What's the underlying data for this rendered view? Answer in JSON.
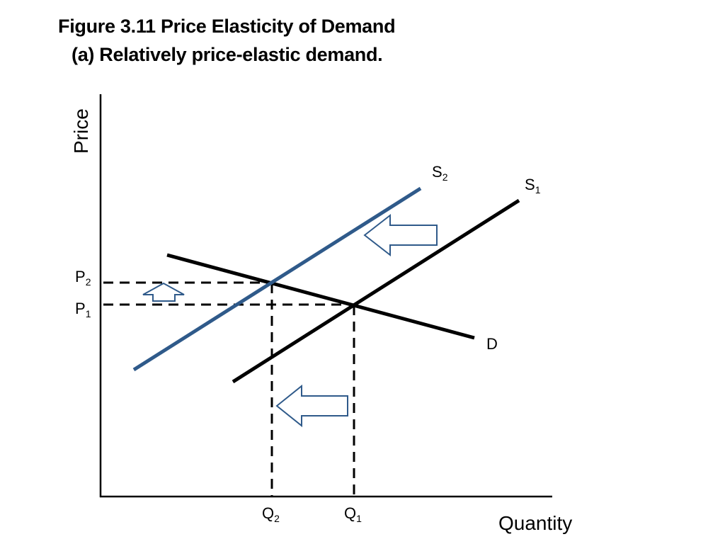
{
  "title": {
    "line1": "Figure 3.11 Price Elasticity of Demand",
    "line2": "(a) Relatively price-elastic demand."
  },
  "axes": {
    "y_title": "Price",
    "x_title": "Quantity"
  },
  "curves": {
    "s2": {
      "main": "S",
      "sub": "2",
      "color": "#2f5a8a"
    },
    "s1": {
      "main": "S",
      "sub": "1",
      "color": "#000000"
    },
    "d": {
      "main": "D",
      "color": "#000000"
    }
  },
  "levels": {
    "p2": {
      "main": "P",
      "sub": "2"
    },
    "p1": {
      "main": "P",
      "sub": "1"
    },
    "q2": {
      "main": "Q",
      "sub": "2"
    },
    "q1": {
      "main": "Q",
      "sub": "1"
    }
  },
  "colors": {
    "arrow_stroke": "#2f5a8a",
    "arrow_fill": "#ffffff"
  }
}
